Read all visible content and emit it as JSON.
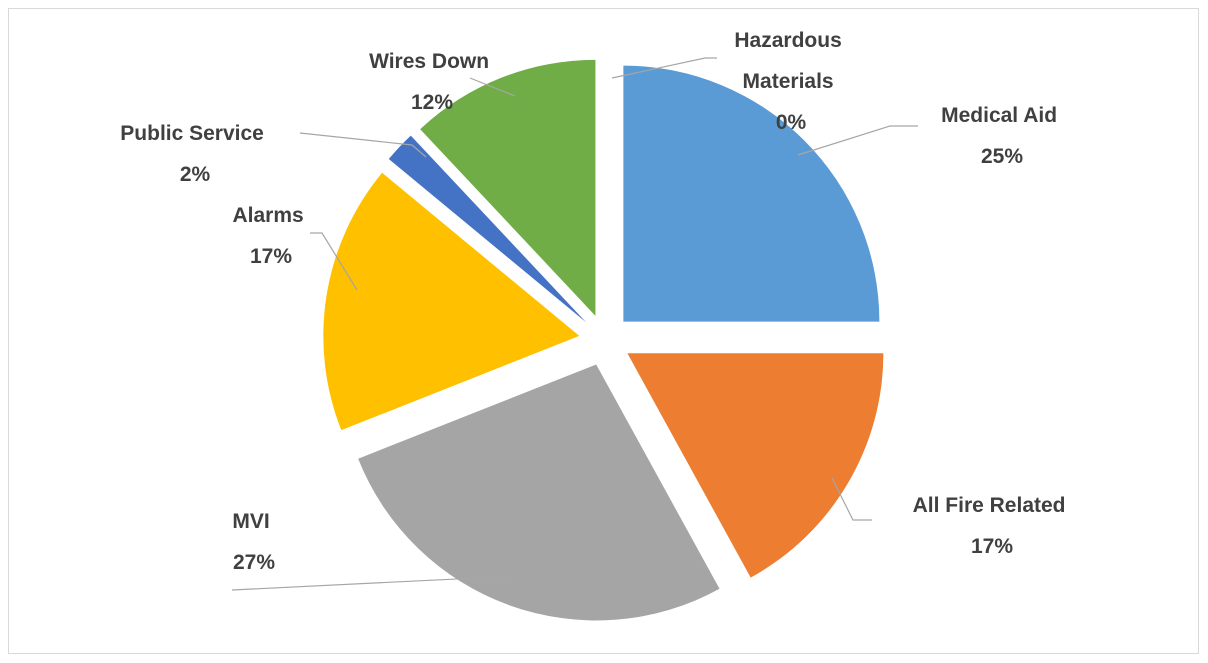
{
  "chart_data": {
    "type": "pie",
    "exploded": true,
    "start_angle_deg": 0,
    "direction": "clockwise",
    "legend": "none",
    "slices": [
      {
        "name": "Medical Aid",
        "value": 25,
        "label": "25%",
        "color": "#5b9bd5"
      },
      {
        "name": "All Fire Related",
        "value": 17,
        "label": "17%",
        "color": "#ed7d31"
      },
      {
        "name": "MVI",
        "value": 27,
        "label": "27%",
        "color": "#a5a5a5"
      },
      {
        "name": "Alarms",
        "value": 17,
        "label": "17%",
        "color": "#ffc000"
      },
      {
        "name": "Public Service",
        "value": 2,
        "label": "2%",
        "color": "#4472c4"
      },
      {
        "name": "Wires Down",
        "value": 12,
        "label": "12%",
        "color": "#70ad47"
      },
      {
        "name": "Hazardous Materials",
        "value": 0,
        "label": "0%",
        "color": "#264478"
      }
    ]
  }
}
